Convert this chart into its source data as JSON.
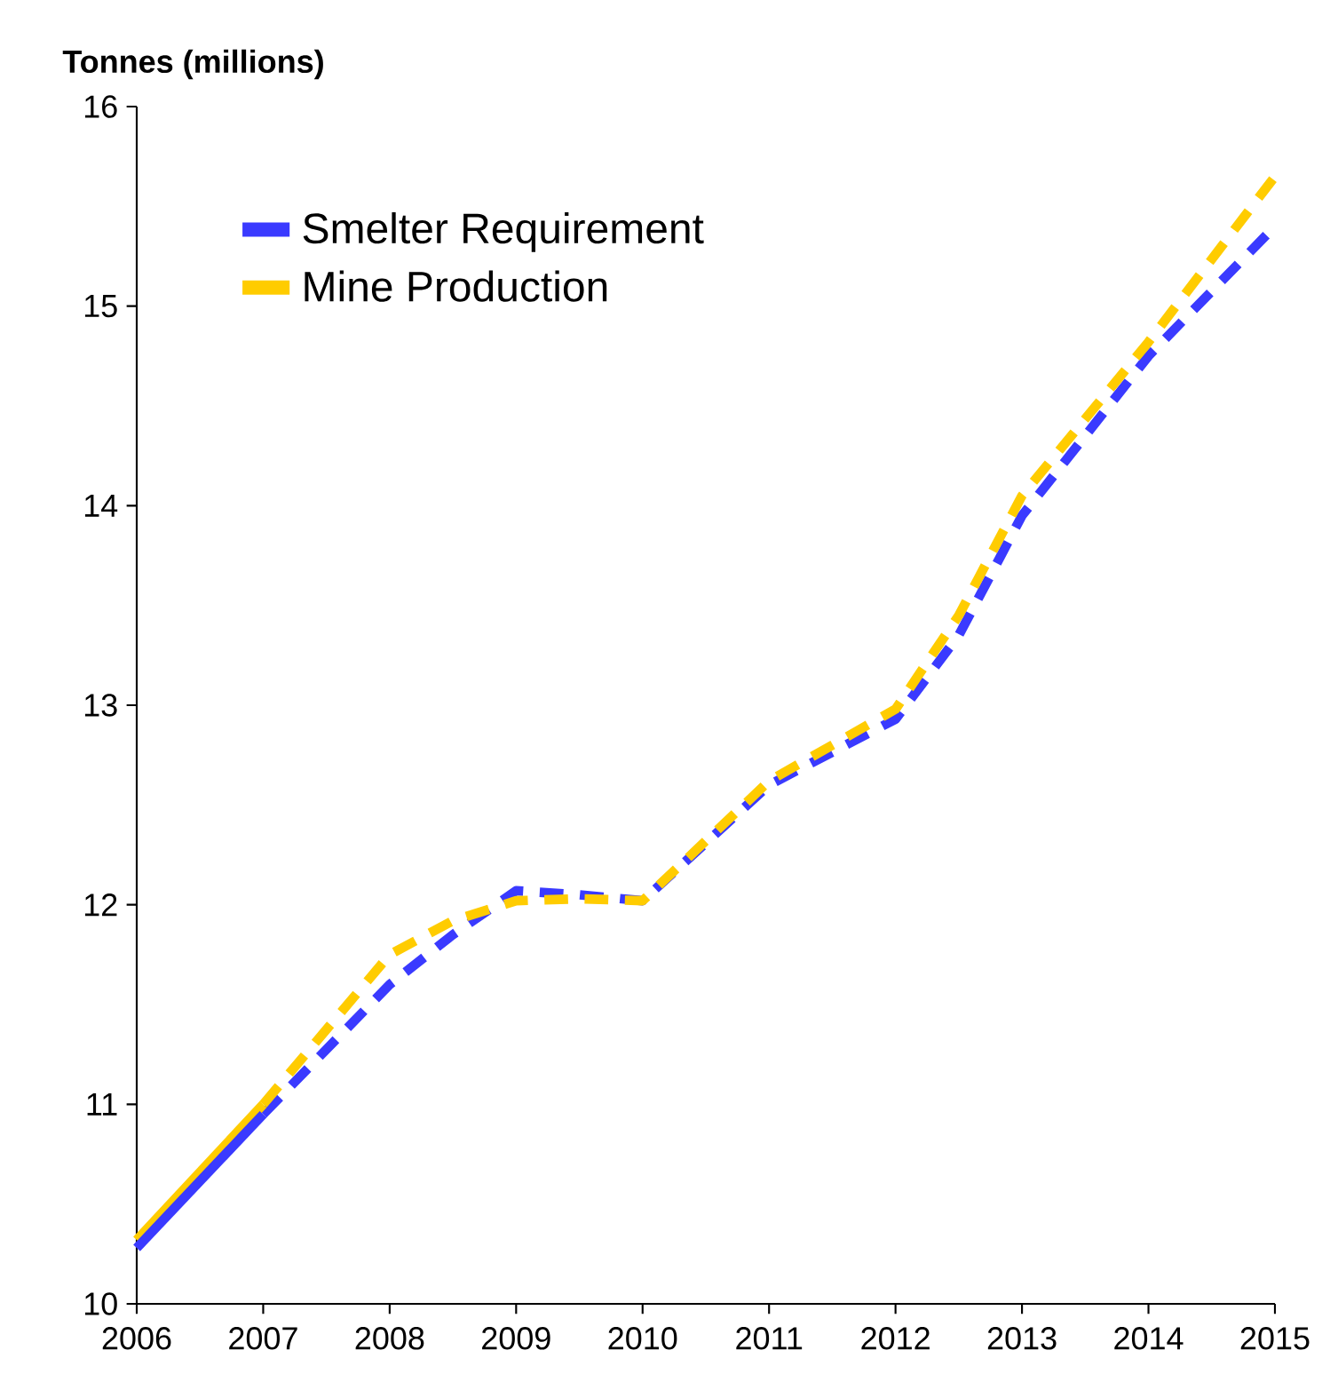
{
  "chart_data": {
    "type": "line",
    "ylabel": "Tonnes (millions)",
    "xlim": [
      2006,
      2015
    ],
    "ylim": [
      10,
      16
    ],
    "xticks": [
      2006,
      2007,
      2008,
      2009,
      2010,
      2011,
      2012,
      2013,
      2014,
      2015
    ],
    "yticks": [
      10,
      11,
      12,
      13,
      14,
      15,
      16
    ],
    "grid": false,
    "legend": "top left",
    "marker": "none",
    "series": [
      {
        "name": "Smelter Requirement",
        "color": "#3a3aff",
        "line_style": "dashed",
        "x": [
          2007,
          2008,
          2008.5,
          2009,
          2009.5,
          2010,
          2011,
          2012,
          2012.5,
          2013,
          2014,
          2015
        ],
        "values": [
          10.95,
          11.6,
          11.85,
          12.07,
          12.05,
          12.02,
          12.6,
          12.93,
          13.35,
          13.95,
          14.75,
          15.4
        ]
      },
      {
        "name": "Mine Production",
        "color": "#ffcc00",
        "line_style": "dashed",
        "x": [
          2007,
          2008,
          2008.5,
          2009,
          2009.5,
          2010,
          2011,
          2012,
          2012.5,
          2013,
          2014,
          2015
        ],
        "values": [
          11.0,
          11.75,
          11.92,
          12.02,
          12.03,
          12.02,
          12.62,
          12.98,
          13.45,
          14.05,
          14.82,
          15.65
        ]
      },
      {
        "color": "#ffcc00",
        "line_style": "solid",
        "x": [
          2006,
          2007
        ],
        "values": [
          10.32,
          11.0
        ]
      },
      {
        "color": "#3a3aff",
        "line_style": "solid",
        "x": [
          2006,
          2007
        ],
        "values": [
          10.28,
          10.95
        ]
      }
    ]
  }
}
